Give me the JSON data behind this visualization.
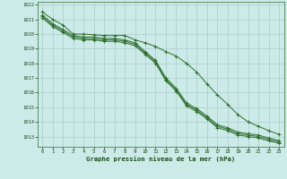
{
  "bg_color": "#cceae7",
  "grid_color": "#aacccc",
  "line_color": "#2d6e2d",
  "marker_color": "#2d6e2d",
  "xlabel": "Graphe pression niveau de la mer (hPa)",
  "xlabel_color": "#1a4d1a",
  "tick_color": "#1a4d1a",
  "xlim": [
    -0.5,
    23.5
  ],
  "ylim": [
    1012.3,
    1022.2
  ],
  "xticks": [
    0,
    1,
    2,
    3,
    4,
    5,
    6,
    7,
    8,
    9,
    10,
    11,
    12,
    13,
    14,
    15,
    16,
    17,
    18,
    19,
    20,
    21,
    22,
    23
  ],
  "yticks": [
    1013,
    1014,
    1015,
    1016,
    1017,
    1018,
    1019,
    1020,
    1021,
    1022
  ],
  "series": [
    [
      1021.5,
      1021.0,
      1020.6,
      1020.0,
      1020.0,
      1019.95,
      1019.9,
      1019.9,
      1019.9,
      1019.6,
      1019.4,
      1019.15,
      1018.8,
      1018.5,
      1018.0,
      1017.4,
      1016.6,
      1015.85,
      1015.2,
      1014.5,
      1014.0,
      1013.7,
      1013.4,
      1013.15
    ],
    [
      1021.3,
      1020.7,
      1020.3,
      1019.9,
      1019.8,
      1019.8,
      1019.7,
      1019.7,
      1019.6,
      1019.4,
      1018.8,
      1018.2,
      1017.0,
      1016.3,
      1015.3,
      1014.9,
      1014.4,
      1013.8,
      1013.6,
      1013.3,
      1013.2,
      1013.1,
      1012.9,
      1012.72
    ],
    [
      1021.2,
      1020.6,
      1020.2,
      1019.8,
      1019.7,
      1019.7,
      1019.6,
      1019.6,
      1019.5,
      1019.3,
      1018.7,
      1018.1,
      1016.9,
      1016.2,
      1015.2,
      1014.8,
      1014.3,
      1013.7,
      1013.5,
      1013.2,
      1013.1,
      1013.0,
      1012.8,
      1012.63
    ],
    [
      1021.1,
      1020.5,
      1020.1,
      1019.7,
      1019.6,
      1019.6,
      1019.5,
      1019.5,
      1019.4,
      1019.2,
      1018.6,
      1018.0,
      1016.8,
      1016.1,
      1015.1,
      1014.7,
      1014.2,
      1013.6,
      1013.4,
      1013.1,
      1013.0,
      1012.9,
      1012.7,
      1012.55
    ]
  ]
}
